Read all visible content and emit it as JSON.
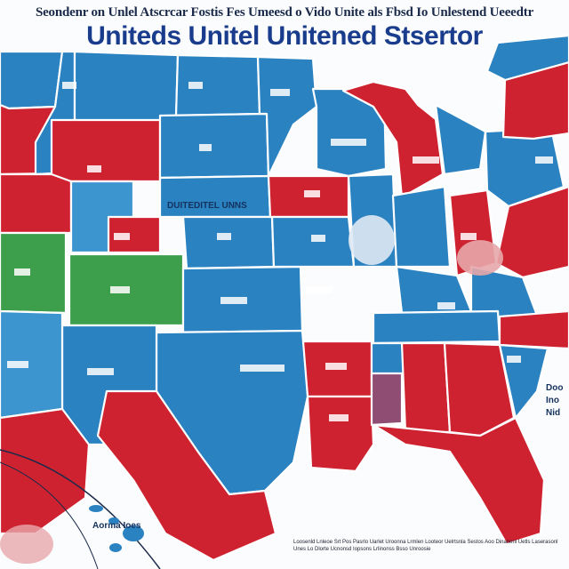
{
  "header": {
    "top_line": "Seondenr on Unlel Atscrcar Fostis Fes Umeesd o Vido Unite als Fbsd Io Unlestend Ueeedtr",
    "title": "Uniteds Unitel Unitened Stsertor"
  },
  "labels": {
    "central": "DUITEDITEL UNNS",
    "inset": "Aorma Ioes",
    "east": "Doo Ino Nid"
  },
  "footer_text": "Loosenld Lnleoe Srt Pos Pasrlo Uarlet Uroonna Lrmlen Looteor Uelrtsnla Sestos Aoo Dinanenl Uetls Laserasonl Unes Lo Dlorte Ucnonsd Iopsons Lrlinonss Bsso Unroosie",
  "colors": {
    "blue": "#2b82c1",
    "red": "#cf2230",
    "green": "#3d9e4b",
    "purple": "#8f4d74",
    "title": "#1a3c8c"
  }
}
